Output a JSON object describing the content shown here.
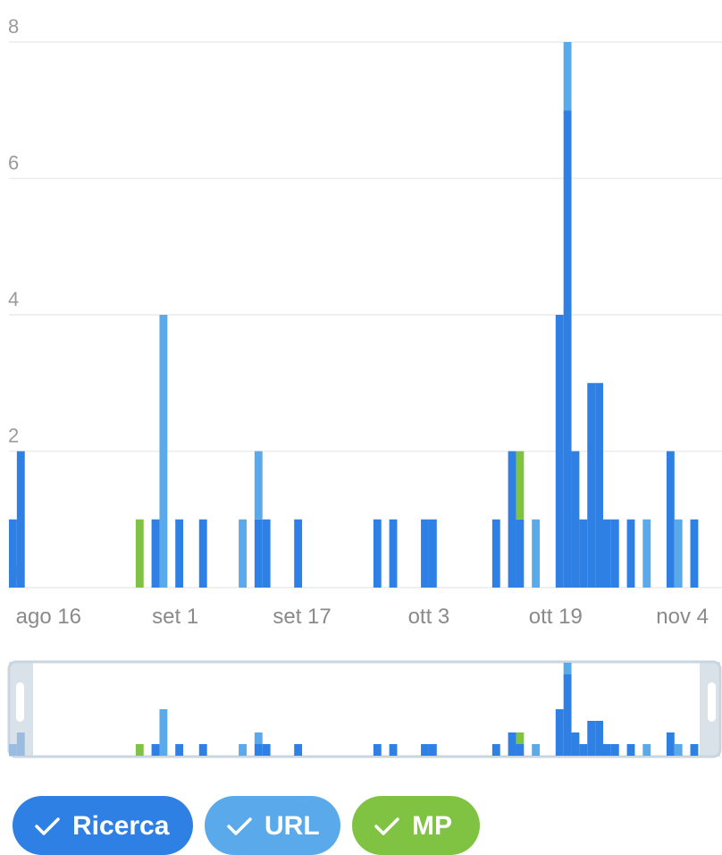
{
  "chart_data": {
    "type": "bar",
    "stacked": true,
    "categories": [
      null,
      null,
      null,
      null,
      null,
      "ago 16",
      null,
      null,
      null,
      null,
      null,
      null,
      null,
      null,
      null,
      null,
      null,
      null,
      null,
      null,
      null,
      "set 1",
      null,
      null,
      null,
      null,
      null,
      null,
      null,
      null,
      null,
      null,
      null,
      null,
      null,
      null,
      null,
      "set 17",
      null,
      null,
      null,
      null,
      null,
      null,
      null,
      null,
      null,
      null,
      null,
      null,
      null,
      null,
      null,
      "ott 3",
      null,
      null,
      null,
      null,
      null,
      null,
      null,
      null,
      null,
      null,
      null,
      null,
      null,
      null,
      null,
      "ott 19",
      null,
      null,
      null,
      null,
      null,
      null,
      null,
      null,
      null,
      null,
      null,
      null,
      null,
      null,
      null,
      "nov 4",
      null,
      null,
      null,
      null
    ],
    "series": [
      {
        "name": "Ricerca",
        "color": "#2f80e4",
        "values": [
          1,
          2,
          0,
          0,
          0,
          0,
          0,
          0,
          0,
          0,
          0,
          0,
          0,
          0,
          0,
          0,
          0,
          0,
          1,
          0,
          0,
          1,
          0,
          0,
          1,
          0,
          0,
          0,
          0,
          0,
          0,
          1,
          1,
          0,
          0,
          0,
          1,
          0,
          0,
          0,
          0,
          0,
          0,
          0,
          0,
          0,
          1,
          0,
          1,
          0,
          0,
          0,
          1,
          1,
          0,
          0,
          0,
          0,
          0,
          0,
          0,
          1,
          0,
          2,
          1,
          0,
          0,
          0,
          0,
          4,
          7,
          2,
          1,
          3,
          3,
          1,
          1,
          0,
          1,
          0,
          0,
          0,
          0,
          2,
          0,
          0,
          1,
          0,
          0,
          0
        ]
      },
      {
        "name": "URL",
        "color": "#5aaaeb",
        "values": [
          0,
          0,
          0,
          0,
          0,
          0,
          0,
          0,
          0,
          0,
          0,
          0,
          0,
          0,
          0,
          0,
          0,
          0,
          0,
          4,
          0,
          0,
          0,
          0,
          0,
          0,
          0,
          0,
          0,
          1,
          0,
          1,
          0,
          0,
          0,
          0,
          0,
          0,
          0,
          0,
          0,
          0,
          0,
          0,
          0,
          0,
          0,
          0,
          0,
          0,
          0,
          0,
          0,
          0,
          0,
          0,
          0,
          0,
          0,
          0,
          0,
          0,
          0,
          0,
          0,
          0,
          1,
          0,
          0,
          0,
          1,
          0,
          0,
          0,
          0,
          0,
          0,
          0,
          0,
          0,
          1,
          0,
          0,
          0,
          1,
          0,
          0,
          0,
          0,
          0
        ]
      },
      {
        "name": "MP",
        "color": "#80c342",
        "values": [
          0,
          0,
          0,
          0,
          0,
          0,
          0,
          0,
          0,
          0,
          0,
          0,
          0,
          0,
          0,
          0,
          1,
          0,
          0,
          0,
          0,
          0,
          0,
          0,
          0,
          0,
          0,
          0,
          0,
          0,
          0,
          0,
          0,
          0,
          0,
          0,
          0,
          0,
          0,
          0,
          0,
          0,
          0,
          0,
          0,
          0,
          0,
          0,
          0,
          0,
          0,
          0,
          0,
          0,
          0,
          0,
          0,
          0,
          0,
          0,
          0,
          0,
          0,
          0,
          1,
          0,
          0,
          0,
          0,
          0,
          0,
          0,
          0,
          0,
          0,
          0,
          0,
          0,
          0,
          0,
          0,
          0,
          0,
          0,
          0,
          0,
          0,
          0,
          0,
          0
        ]
      }
    ],
    "ylim": [
      0,
      8
    ],
    "yticks": [
      0,
      2,
      4,
      6,
      8
    ],
    "grid": true
  }
}
